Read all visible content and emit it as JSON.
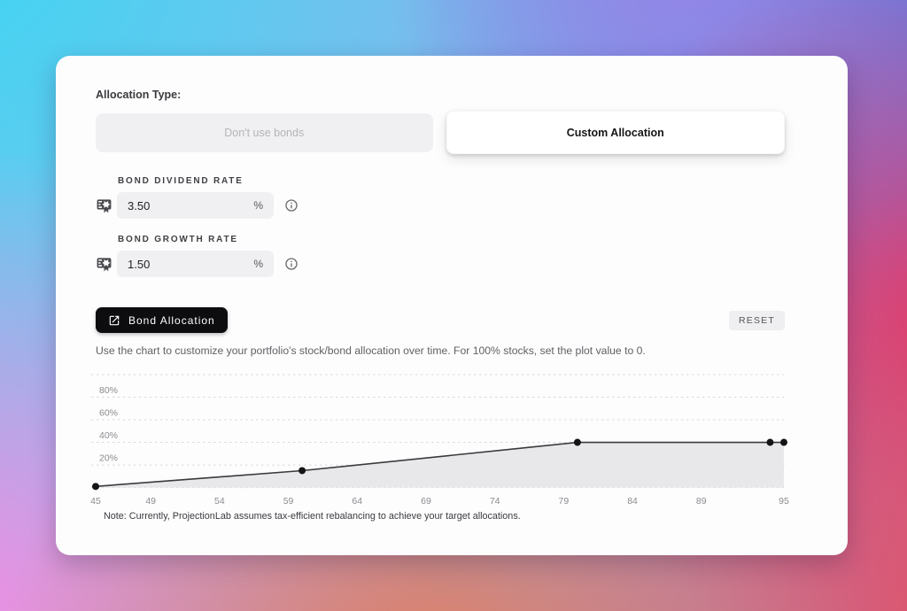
{
  "allocation_type": {
    "label": "Allocation Type:",
    "options": [
      {
        "label": "Don't use bonds",
        "selected": false
      },
      {
        "label": "Custom Allocation",
        "selected": true
      }
    ]
  },
  "fields": [
    {
      "label": "BOND DIVIDEND RATE",
      "value": "3.50",
      "suffix": "%",
      "left_icon": "certificate-icon",
      "right_icon": "info-icon"
    },
    {
      "label": "BOND GROWTH RATE",
      "value": "1.50",
      "suffix": "%",
      "left_icon": "certificate-icon",
      "right_icon": "info-icon"
    }
  ],
  "bond_allocation": {
    "button_label": "Bond Allocation",
    "button_icon": "open-in-new-icon",
    "reset_label": "RESET",
    "description": "Use the chart to customize your portfolio's stock/bond allocation over time. For 100% stocks, set the plot value to 0.",
    "note": "Note: Currently, ProjectionLab assumes tax-efficient rebalancing to achieve your target allocations."
  },
  "chart_data": {
    "type": "area",
    "x": [
      45,
      60,
      80,
      94,
      95
    ],
    "values": [
      1,
      15,
      40,
      40,
      40
    ],
    "x_ticks": [
      45,
      49,
      54,
      59,
      64,
      69,
      74,
      79,
      84,
      89,
      95
    ],
    "y_ticks": [
      20,
      40,
      60,
      80
    ],
    "y_tick_suffix": "%",
    "xlim": [
      45,
      95
    ],
    "ylim": [
      0,
      100
    ],
    "grid": "horizontal-dashed",
    "legend": "none",
    "title": "",
    "xlabel": "",
    "ylabel": "",
    "line_color": "#3a3a3e",
    "area_color": "#e8e8ea",
    "point_color": "#141416",
    "grid_color": "#d9d9db",
    "tick_color": "#8b8b8f"
  },
  "colors": {
    "primary_button": "#0d0d0f",
    "field_background": "#f0f0f2",
    "card_background": "#fdfdfe"
  }
}
